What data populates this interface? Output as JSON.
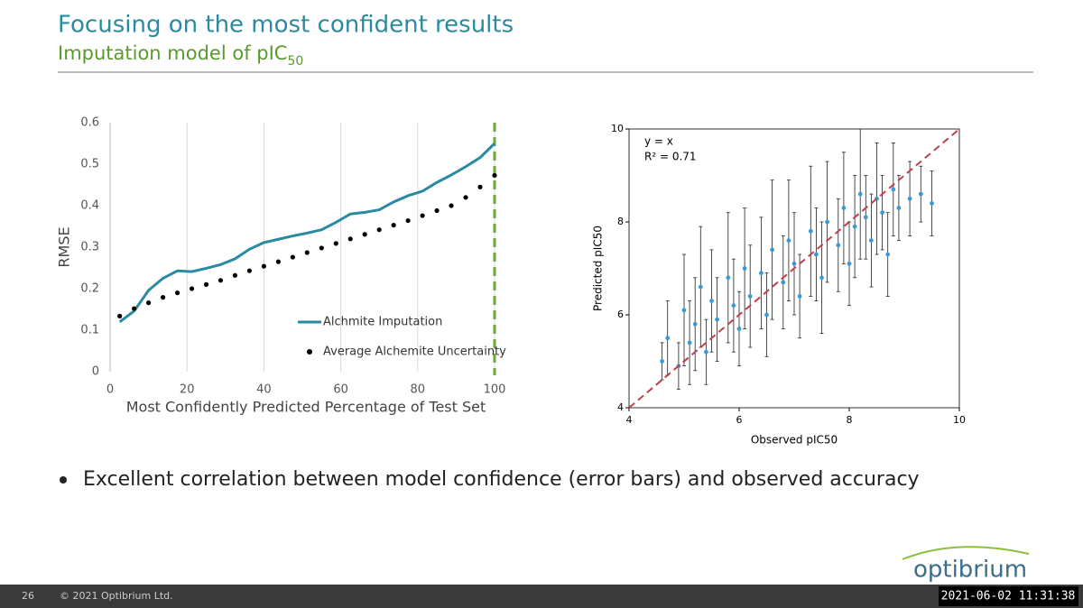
{
  "header": {
    "title": "Focusing on the most confident results",
    "subtitle": "Imputation model of pIC",
    "subtitle_subscript": "50"
  },
  "chart_data": [
    {
      "type": "line",
      "x_label": "Most Confidently Predicted Percentage of Test Set",
      "y_label": "RMSE",
      "x": [
        2.5,
        6.25,
        10,
        13.75,
        17.5,
        21.25,
        25,
        28.75,
        32.5,
        36.25,
        40,
        43.75,
        47.5,
        51.25,
        55,
        58.75,
        62.5,
        66.25,
        70,
        73.75,
        77.5,
        81.25,
        85,
        88.75,
        92.5,
        96.25,
        100
      ],
      "series": [
        {
          "name": "Alchmite Imputation",
          "color": "#2a8aa0",
          "style": "line",
          "values": [
            0.12,
            0.146,
            0.196,
            0.225,
            0.243,
            0.241,
            0.249,
            0.258,
            0.272,
            0.295,
            0.311,
            0.319,
            0.327,
            0.334,
            0.342,
            0.36,
            0.38,
            0.384,
            0.39,
            0.409,
            0.424,
            0.435,
            0.456,
            0.474,
            0.494,
            0.516,
            0.55
          ]
        },
        {
          "name": "Average Alchemite Uncertainty",
          "color": "#000000",
          "style": "dots",
          "values": [
            0.134,
            0.152,
            0.166,
            0.179,
            0.19,
            0.2,
            0.21,
            0.22,
            0.232,
            0.243,
            0.254,
            0.265,
            0.276,
            0.287,
            0.298,
            0.309,
            0.32,
            0.331,
            0.342,
            0.353,
            0.364,
            0.376,
            0.388,
            0.4,
            0.42,
            0.445,
            0.473
          ]
        }
      ],
      "xlim": [
        0,
        100
      ],
      "ylim": [
        0,
        0.6
      ],
      "xticks": [
        0,
        20,
        40,
        60,
        80,
        100
      ],
      "yticks": [
        0,
        0.1,
        0.2,
        0.3,
        0.4,
        0.5,
        0.6
      ],
      "grid": "x",
      "legend": "lower right",
      "vline": {
        "x": 100,
        "color": "#6aaa3a"
      }
    },
    {
      "type": "scatter",
      "x_label": "Observed pIC50",
      "y_label": "Predicted pIC50",
      "annotations": [
        "y = x",
        "R² = 0.71"
      ],
      "series": [
        {
          "color": "#3a9ad9",
          "error_color": "#222222",
          "x": [
            4.6,
            4.7,
            4.9,
            5.0,
            5.1,
            5.2,
            5.3,
            5.4,
            5.5,
            5.6,
            5.8,
            5.9,
            6.0,
            6.1,
            6.2,
            6.4,
            6.5,
            6.6,
            6.8,
            6.9,
            7.0,
            7.1,
            7.3,
            7.4,
            7.5,
            7.6,
            7.8,
            7.9,
            8.0,
            8.1,
            8.2,
            8.3,
            8.4,
            8.5,
            8.6,
            8.7,
            8.8,
            8.9,
            9.1,
            9.3,
            9.5
          ],
          "values": [
            5.0,
            5.5,
            4.9,
            6.1,
            5.4,
            5.8,
            6.6,
            5.2,
            6.3,
            5.9,
            6.8,
            6.2,
            5.7,
            7.0,
            6.4,
            6.9,
            6.0,
            7.4,
            6.7,
            7.6,
            7.1,
            6.4,
            7.8,
            7.3,
            6.8,
            8.0,
            7.5,
            8.3,
            7.1,
            7.9,
            8.6,
            8.1,
            7.6,
            8.5,
            8.2,
            7.3,
            8.7,
            8.3,
            8.5,
            8.6,
            8.4
          ],
          "errors": [
            0.4,
            0.8,
            0.5,
            1.2,
            0.9,
            1.0,
            1.3,
            0.7,
            1.1,
            0.9,
            1.4,
            1.0,
            0.8,
            1.3,
            1.1,
            1.2,
            0.9,
            1.5,
            1.0,
            1.3,
            1.1,
            0.9,
            1.4,
            1.0,
            1.2,
            1.3,
            1.0,
            1.2,
            0.9,
            1.1,
            1.4,
            0.9,
            1.0,
            1.2,
            0.8,
            0.9,
            1.0,
            0.7,
            0.8,
            0.6,
            0.7
          ]
        }
      ],
      "xlim": [
        4,
        10
      ],
      "ylim": [
        4,
        10
      ],
      "xticks": [
        4,
        6,
        8,
        10
      ],
      "yticks": [
        4,
        6,
        8,
        10
      ],
      "reference_line_color": "#c0404a"
    }
  ],
  "bullets": [
    "Excellent correlation between model confidence (error bars) and observed accuracy"
  ],
  "logo": "optibrium",
  "footer": {
    "slide": "26",
    "copyright": "© 2021 Optibrium Ltd.",
    "timestamp": "2021-06-02 11:31:38"
  }
}
